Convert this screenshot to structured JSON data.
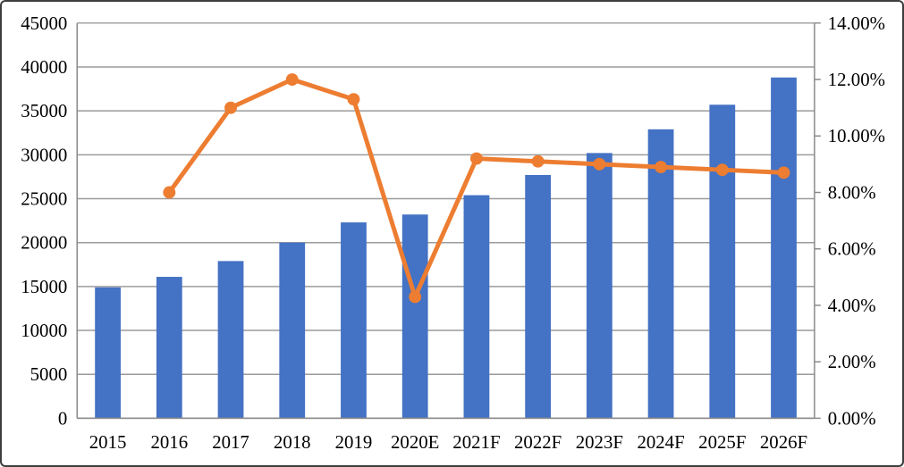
{
  "chart_data": {
    "type": "combo",
    "categories": [
      "2015",
      "2016",
      "2017",
      "2018",
      "2019",
      "2020E",
      "2021F",
      "2022F",
      "2023F",
      "2024F",
      "2025F",
      "2026F"
    ],
    "series": [
      {
        "name": "value-bars",
        "type": "bar",
        "axis": "left",
        "color": "#4472C4",
        "values": [
          14900,
          16100,
          17900,
          20000,
          22300,
          23200,
          25400,
          27700,
          30200,
          32900,
          35700,
          38800
        ]
      },
      {
        "name": "growth-rate-line",
        "type": "line",
        "axis": "right",
        "color": "#ED7D31",
        "values": [
          null,
          8.0,
          11.0,
          12.0,
          11.3,
          4.3,
          9.2,
          9.1,
          9.0,
          8.9,
          8.8,
          8.7
        ]
      }
    ],
    "left_axis": {
      "min": 0,
      "max": 45000,
      "step": 5000,
      "tick_labels": [
        "0",
        "5000",
        "10000",
        "15000",
        "20000",
        "25000",
        "30000",
        "35000",
        "40000",
        "45000"
      ]
    },
    "right_axis": {
      "min": 0,
      "max": 14,
      "step": 2,
      "tick_labels": [
        "0.00%",
        "2.00%",
        "4.00%",
        "6.00%",
        "8.00%",
        "10.00%",
        "12.00%",
        "14.00%"
      ]
    },
    "title": "",
    "xlabel": "",
    "ylabel": "",
    "grid": true,
    "legend": false
  },
  "style": {
    "bar_color": "#4472C4",
    "line_color": "#ED7D31",
    "grid_color": "#9b9b9b",
    "axis_color": "#8a8a8a",
    "tick_label_color": "#000000",
    "frame_border_color": "#3e3e3e",
    "background_color": "#ffffff"
  }
}
